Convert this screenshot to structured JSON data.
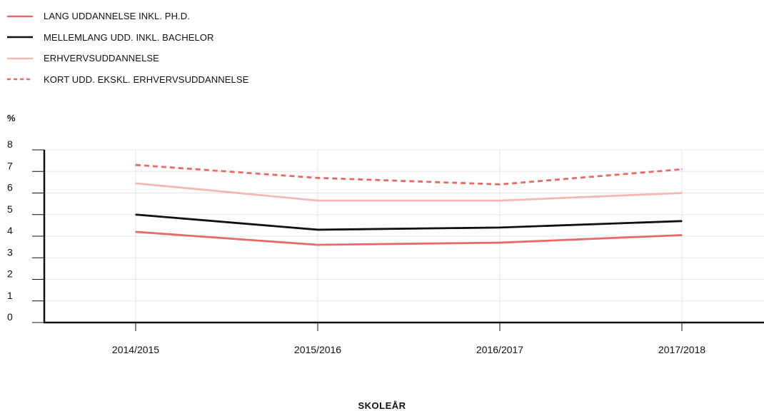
{
  "chart_data": {
    "type": "line",
    "categories": [
      "2014/2015",
      "2015/2016",
      "2016/2017",
      "2017/2018"
    ],
    "series": [
      {
        "name": "LANG UDDANNELSE INKL. PH.D.",
        "values": [
          4.2,
          3.6,
          3.7,
          4.05
        ],
        "color": "#e86a67",
        "dashed": false
      },
      {
        "name": "MELLEMLANG UDD. INKL. BACHELOR",
        "values": [
          5.0,
          4.3,
          4.4,
          4.7
        ],
        "color": "#111111",
        "dashed": false
      },
      {
        "name": "ERHVERVSUDDANNELSE",
        "values": [
          6.45,
          5.65,
          5.65,
          6.0
        ],
        "color": "#f5b8b4",
        "dashed": false
      },
      {
        "name": "KORT UDD. EKSKL. ERHVERVSUDDANNELSE",
        "values": [
          7.3,
          6.7,
          6.4,
          7.1
        ],
        "color": "#e86a67",
        "dashed": true
      }
    ],
    "ylabel": "%",
    "xlabel": "SKOLEÅR",
    "ylim": [
      0,
      8
    ],
    "yticks": [
      0,
      1,
      2,
      3,
      4,
      5,
      6,
      7,
      8
    ],
    "grid": true,
    "legend_position": "top-left"
  }
}
